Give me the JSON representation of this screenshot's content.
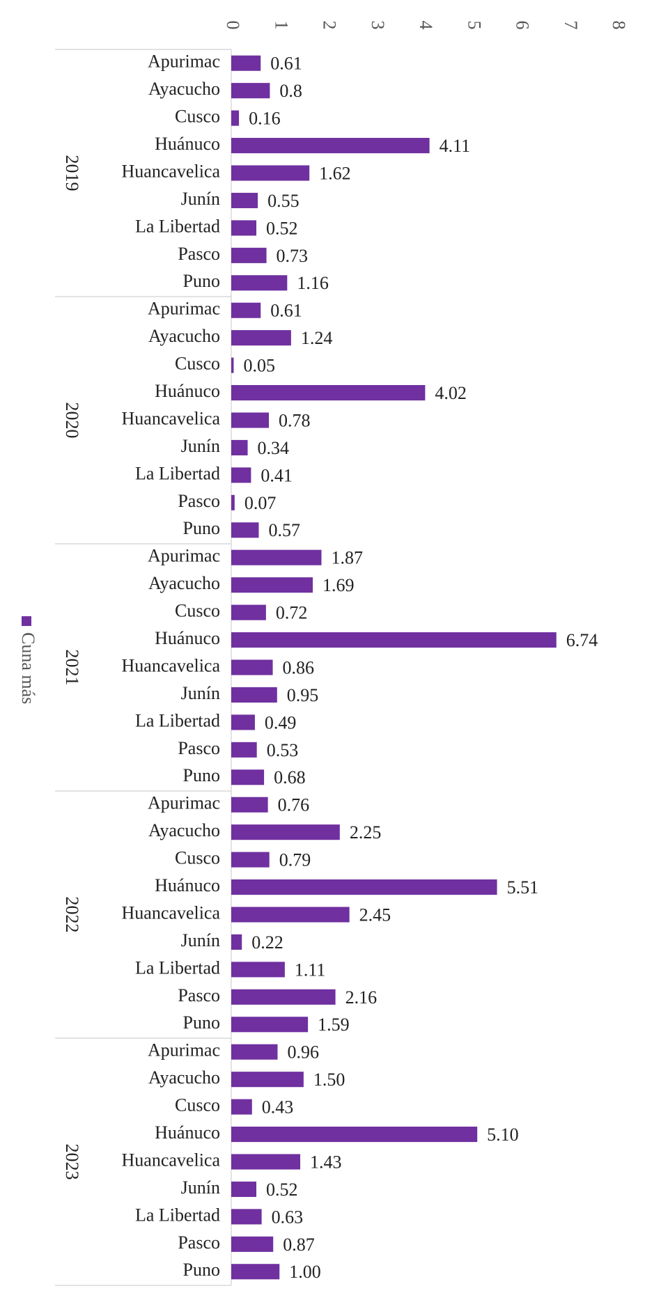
{
  "chart_data": {
    "type": "bar",
    "orientation": "horizontal",
    "groups": [
      "2019",
      "2020",
      "2021",
      "2022",
      "2023"
    ],
    "categories": [
      "Apurimac",
      "Ayacucho",
      "Cusco",
      "Huánuco",
      "Huancavelica",
      "Junín",
      "La Libertad",
      "Pasco",
      "Puno",
      "Apurimac",
      "Ayacucho",
      "Cusco",
      "Huánuco",
      "Huancavelica",
      "Junín",
      "La Libertad",
      "Pasco",
      "Puno",
      "Apurimac",
      "Ayacucho",
      "Cusco",
      "Huánuco",
      "Huancavelica",
      "Junín",
      "La Libertad",
      "Pasco",
      "Puno",
      "Apurimac",
      "Ayacucho",
      "Cusco",
      "Huánuco",
      "Huancavelica",
      "Junín",
      "La Libertad",
      "Pasco",
      "Puno",
      "Apurimac",
      "Ayacucho",
      "Cusco",
      "Huánuco",
      "Huancavelica",
      "Junín",
      "La Libertad",
      "Pasco",
      "Puno"
    ],
    "series": [
      {
        "name": "Cuna más",
        "color": "#7030a0",
        "values": [
          0.61,
          0.8,
          0.16,
          4.11,
          1.62,
          0.55,
          0.52,
          0.73,
          1.16,
          0.61,
          1.24,
          0.05,
          4.02,
          0.78,
          0.34,
          0.41,
          0.07,
          0.57,
          1.87,
          1.69,
          0.72,
          6.74,
          0.86,
          0.95,
          0.49,
          0.53,
          0.68,
          0.76,
          2.25,
          0.79,
          5.51,
          2.45,
          0.22,
          1.11,
          2.16,
          1.59,
          0.96,
          1.5,
          0.43,
          5.1,
          1.43,
          0.52,
          0.63,
          0.87,
          1.0
        ],
        "value_labels": [
          "0.61",
          "0.8",
          "0.16",
          "4.11",
          "1.62",
          "0.55",
          "0.52",
          "0.73",
          "1.16",
          "0.61",
          "1.24",
          "0.05",
          "4.02",
          "0.78",
          "0.34",
          "0.41",
          "0.07",
          "0.57",
          "1.87",
          "1.69",
          "0.72",
          "6.74",
          "0.86",
          "0.95",
          "0.49",
          "0.53",
          "0.68",
          "0.76",
          "2.25",
          "0.79",
          "5.51",
          "2.45",
          "0.22",
          "1.11",
          "2.16",
          "1.59",
          "0.96",
          "1.50",
          "0.43",
          "5.10",
          "1.43",
          "0.52",
          "0.63",
          "0.87",
          "1.00"
        ]
      }
    ],
    "xlim": [
      0,
      8
    ],
    "xticks": [
      0,
      1,
      2,
      3,
      4,
      5,
      6,
      7,
      8
    ],
    "legend": "left"
  }
}
